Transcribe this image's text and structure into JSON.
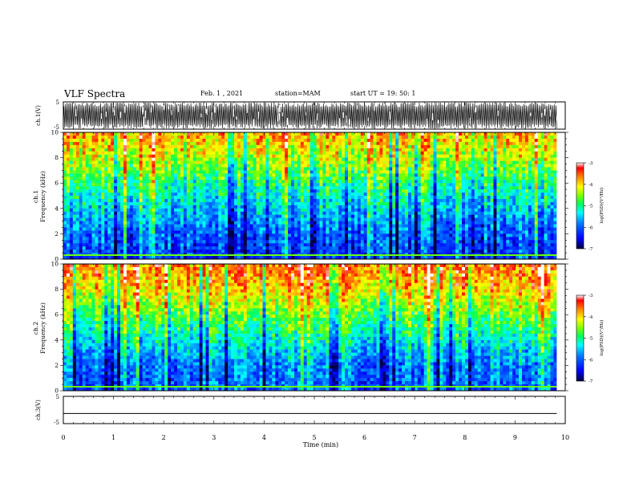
{
  "header": {
    "title": "VLF Spectra",
    "date": "Feb. 1 , 2021",
    "station": "station=MAM",
    "start": "start UT = 19: 50: 1"
  },
  "colors": {
    "colormap": [
      "#00007f",
      "#0000ff",
      "#00bfff",
      "#00ff7f",
      "#7fff00",
      "#ffff00",
      "#ff7f00",
      "#ff0000",
      "#ffffff"
    ],
    "trace": "#000000"
  },
  "chart_data": [
    {
      "type": "line",
      "ylabel": "ch.1(V)",
      "ylim": [
        -5,
        5
      ],
      "yticks": [
        "5",
        "-5"
      ],
      "x_range": [
        0,
        9.83
      ],
      "description_values": {
        "envelope": "dense oscillation, mostly between about -5 and 5 V"
      }
    },
    {
      "type": "heatmap",
      "ylabel": "ch.1\nFrequency (kHz)",
      "ylim": [
        0,
        10
      ],
      "yticks": [
        "0",
        "2",
        "4",
        "6",
        "8",
        "10"
      ],
      "x_range": [
        0,
        9.83
      ],
      "colorbar": {
        "label": "log(PSD)(V²/Hz)",
        "range": [
          -7,
          -3
        ],
        "ticks": [
          "-3",
          "-4",
          "-5",
          "-6",
          "-7"
        ]
      },
      "profile": [
        {
          "freq_khz": 0.5,
          "log_psd": -6.2
        },
        {
          "freq_khz": 2,
          "log_psd": -6.0
        },
        {
          "freq_khz": 4,
          "log_psd": -5.5
        },
        {
          "freq_khz": 6,
          "log_psd": -5.0
        },
        {
          "freq_khz": 8,
          "log_psd": -4.3
        },
        {
          "freq_khz": 10,
          "log_psd": -3.8
        }
      ]
    },
    {
      "type": "heatmap",
      "ylabel": "ch.2\nFrequency (kHz)",
      "ylim": [
        0,
        10
      ],
      "yticks": [
        "0",
        "2",
        "4",
        "6",
        "8",
        "10"
      ],
      "x_range": [
        0,
        9.83
      ],
      "colorbar": {
        "label": "log(PSD)(V²/Hz)",
        "range": [
          -7,
          -3
        ],
        "ticks": [
          "-3",
          "-4",
          "-5",
          "-6",
          "-7"
        ]
      },
      "profile": [
        {
          "freq_khz": 0.5,
          "log_psd": -5.9
        },
        {
          "freq_khz": 2,
          "log_psd": -5.8
        },
        {
          "freq_khz": 4,
          "log_psd": -5.2
        },
        {
          "freq_khz": 6,
          "log_psd": -4.6
        },
        {
          "freq_khz": 8,
          "log_psd": -3.9
        },
        {
          "freq_khz": 10,
          "log_psd": -3.5
        }
      ]
    },
    {
      "type": "line",
      "ylabel": "ch.3(V)",
      "ylim": [
        -5,
        5
      ],
      "yticks": [
        "5",
        "-5"
      ],
      "x": [
        0,
        9.83
      ],
      "y": [
        -1.3,
        -1.3
      ]
    }
  ],
  "xaxis": {
    "label": "Time (min)",
    "range": [
      0,
      10
    ],
    "ticks": [
      "0",
      "1",
      "2",
      "3",
      "4",
      "5",
      "6",
      "7",
      "8",
      "9",
      "10"
    ]
  }
}
